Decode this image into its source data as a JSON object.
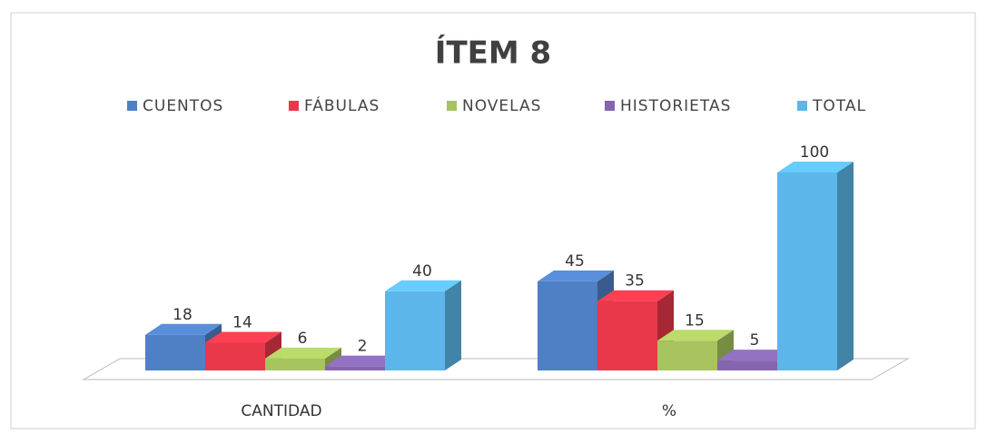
{
  "chart_data": {
    "type": "bar3d",
    "title": "ÍTEM 8",
    "categories": [
      "CANTIDAD",
      "%"
    ],
    "series": [
      {
        "name": "CUENTOS",
        "color": "#4f7fc4",
        "values": [
          18,
          45
        ]
      },
      {
        "name": "FÁBULAS",
        "color": "#e8384a",
        "values": [
          14,
          35
        ]
      },
      {
        "name": "NOVELAS",
        "color": "#a7c45e",
        "values": [
          6,
          15
        ]
      },
      {
        "name": "HISTORIETAS",
        "color": "#8466ae",
        "values": [
          2,
          5
        ]
      },
      {
        "name": "TOTAL",
        "color": "#5cb6ea",
        "values": [
          40,
          100
        ]
      }
    ],
    "legend": "top"
  }
}
